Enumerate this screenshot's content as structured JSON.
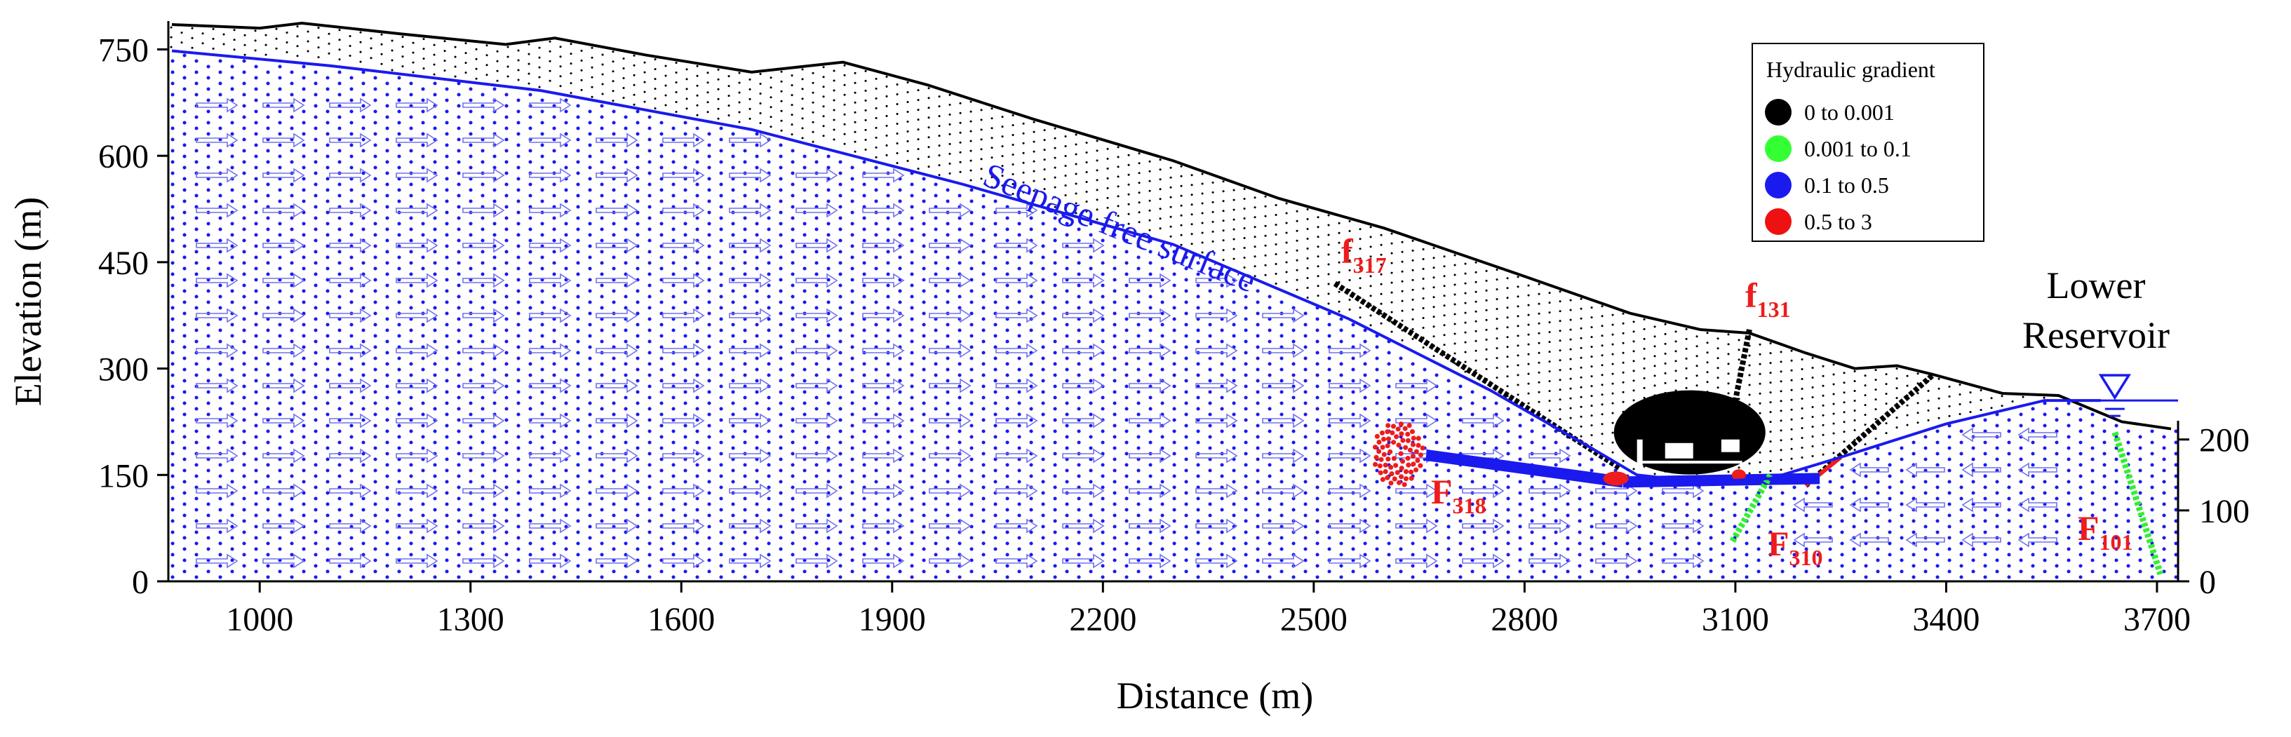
{
  "chart_data": {
    "type": "scatter",
    "title": "",
    "xlabel": "Distance (m)",
    "ylabel": "Elevation (m)",
    "xlim": [
      870,
      3730
    ],
    "ylim": [
      0,
      790
    ],
    "x_ticks": [
      "1000",
      "1300",
      "1600",
      "1900",
      "2200",
      "2500",
      "2800",
      "3100",
      "3400",
      "3700"
    ],
    "y_ticks": [
      "0",
      "150",
      "300",
      "450",
      "600",
      "750"
    ],
    "y2_ticks": [
      "0",
      "100",
      "200"
    ],
    "ground_surface": [
      {
        "x": 875,
        "y": 785
      },
      {
        "x": 1000,
        "y": 780
      },
      {
        "x": 1060,
        "y": 787
      },
      {
        "x": 1200,
        "y": 772
      },
      {
        "x": 1350,
        "y": 757
      },
      {
        "x": 1420,
        "y": 766
      },
      {
        "x": 1550,
        "y": 742
      },
      {
        "x": 1700,
        "y": 718
      },
      {
        "x": 1830,
        "y": 732
      },
      {
        "x": 1950,
        "y": 700
      },
      {
        "x": 2100,
        "y": 652
      },
      {
        "x": 2300,
        "y": 593
      },
      {
        "x": 2450,
        "y": 540
      },
      {
        "x": 2600,
        "y": 498
      },
      {
        "x": 2800,
        "y": 430
      },
      {
        "x": 2950,
        "y": 378
      },
      {
        "x": 3050,
        "y": 355
      },
      {
        "x": 3120,
        "y": 350
      },
      {
        "x": 3200,
        "y": 322
      },
      {
        "x": 3270,
        "y": 300
      },
      {
        "x": 3330,
        "y": 304
      },
      {
        "x": 3380,
        "y": 292
      },
      {
        "x": 3480,
        "y": 265
      },
      {
        "x": 3560,
        "y": 262
      },
      {
        "x": 3650,
        "y": 225
      },
      {
        "x": 3720,
        "y": 215
      }
    ],
    "seepage_free_surface": [
      {
        "x": 875,
        "y": 748
      },
      {
        "x": 1100,
        "y": 727
      },
      {
        "x": 1400,
        "y": 692
      },
      {
        "x": 1700,
        "y": 637
      },
      {
        "x": 2000,
        "y": 560
      },
      {
        "x": 2300,
        "y": 475
      },
      {
        "x": 2550,
        "y": 370
      },
      {
        "x": 2750,
        "y": 270
      },
      {
        "x": 2900,
        "y": 185
      },
      {
        "x": 2960,
        "y": 150
      },
      {
        "x": 3050,
        "y": 140
      },
      {
        "x": 3150,
        "y": 145
      },
      {
        "x": 3250,
        "y": 175
      },
      {
        "x": 3400,
        "y": 222
      },
      {
        "x": 3540,
        "y": 255
      },
      {
        "x": 3620,
        "y": 255
      }
    ],
    "reservoir_level": 255,
    "legend": {
      "title": "Hydraulic gradient",
      "entries": [
        {
          "label": "0  to  0.001",
          "color": "#000000"
        },
        {
          "label": "0.001  to  0.1",
          "color": "#33ff33"
        },
        {
          "label": "0.1  to  0.5",
          "color": "#1a1aee"
        },
        {
          "label": "0.5  to  3",
          "color": "#ee1111"
        }
      ]
    },
    "annotations": {
      "seepage_label": "Seepage free surface",
      "reservoir_line1": "Lower",
      "reservoir_line2": "Reservoir",
      "faults": [
        {
          "name": "f",
          "sub": "317",
          "x": 2520,
          "y": 420
        },
        {
          "name": "f",
          "sub": "131",
          "x": 3120,
          "y": 355
        },
        {
          "name": "F",
          "sub": "318",
          "x": 2650,
          "y": 120
        },
        {
          "name": "F",
          "sub": "310",
          "x": 3150,
          "y": 40
        },
        {
          "name": "F",
          "sub": "101",
          "x": 3640,
          "y": 45
        }
      ]
    },
    "colors": {
      "blue": "#1a1aee",
      "red": "#ee1c1c",
      "green": "#33ee33",
      "black": "#000000"
    }
  }
}
